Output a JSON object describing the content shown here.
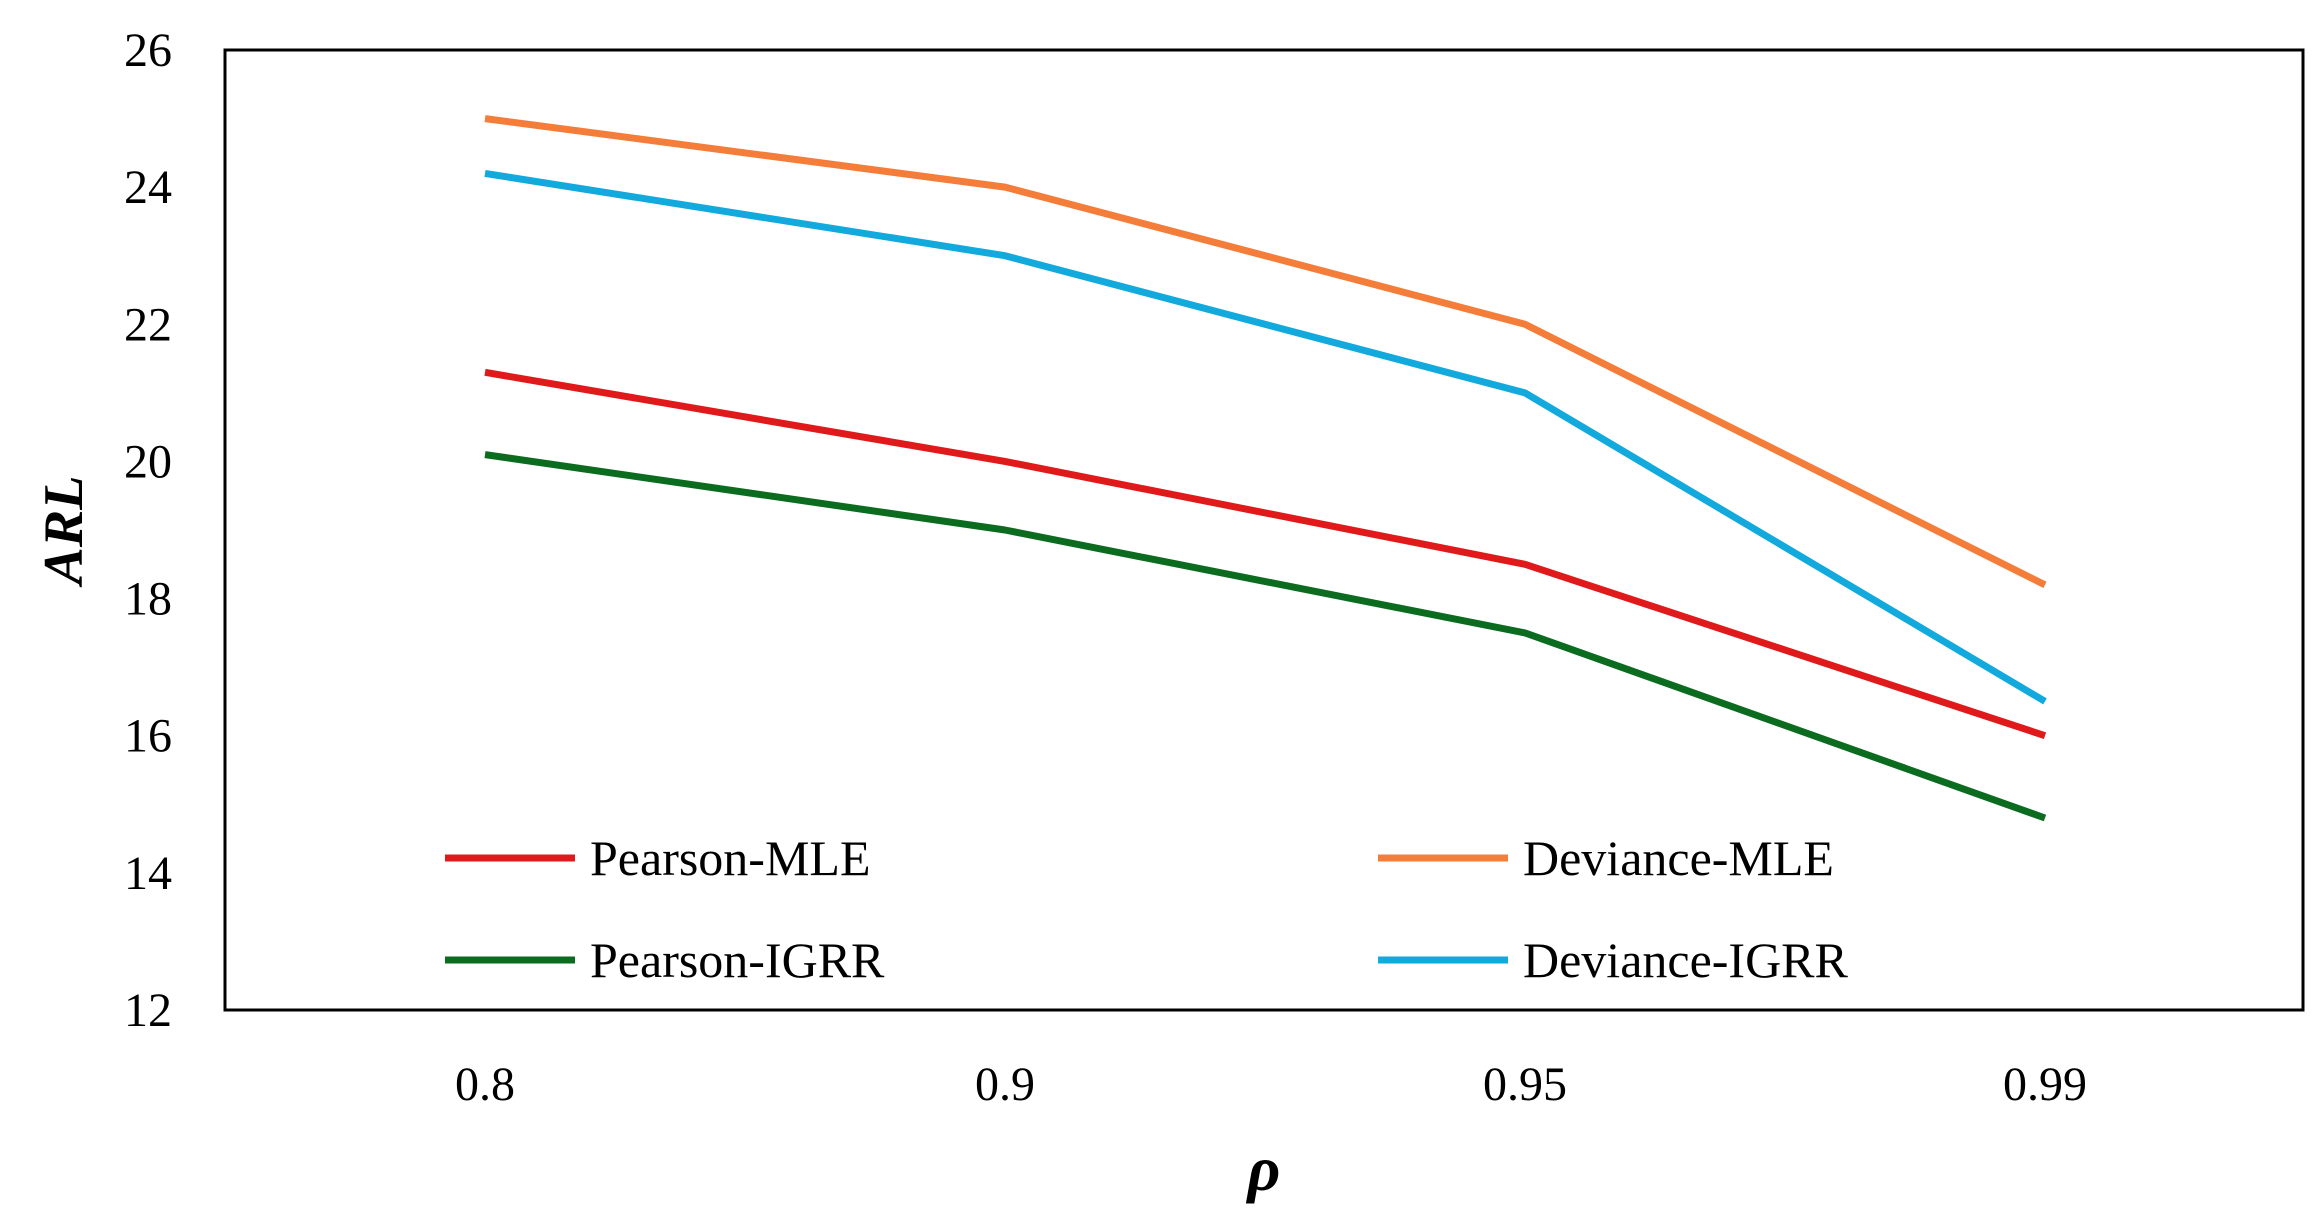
{
  "chart_data": {
    "type": "line",
    "title": "",
    "xlabel": "ρ",
    "ylabel": "ARL",
    "categories": [
      "0.8",
      "0.9",
      "0.95",
      "0.99"
    ],
    "ylim": [
      12,
      26
    ],
    "yticks": [
      12,
      14,
      16,
      18,
      20,
      22,
      24,
      26
    ],
    "grid": false,
    "legend_position": "bottom-inside",
    "series": [
      {
        "name": "Pearson-MLE",
        "color": "#e01a1a",
        "values": [
          21.3,
          20.0,
          18.5,
          16.0
        ]
      },
      {
        "name": "Deviance-MLE",
        "color": "#f47d3a",
        "values": [
          25.0,
          24.0,
          22.0,
          18.2
        ]
      },
      {
        "name": "Pearson-IGRR",
        "color": "#0b6b1e",
        "values": [
          20.1,
          19.0,
          17.5,
          14.8
        ]
      },
      {
        "name": "Deviance-IGRR",
        "color": "#12a9dd",
        "values": [
          24.2,
          23.0,
          21.0,
          16.5
        ]
      }
    ]
  }
}
